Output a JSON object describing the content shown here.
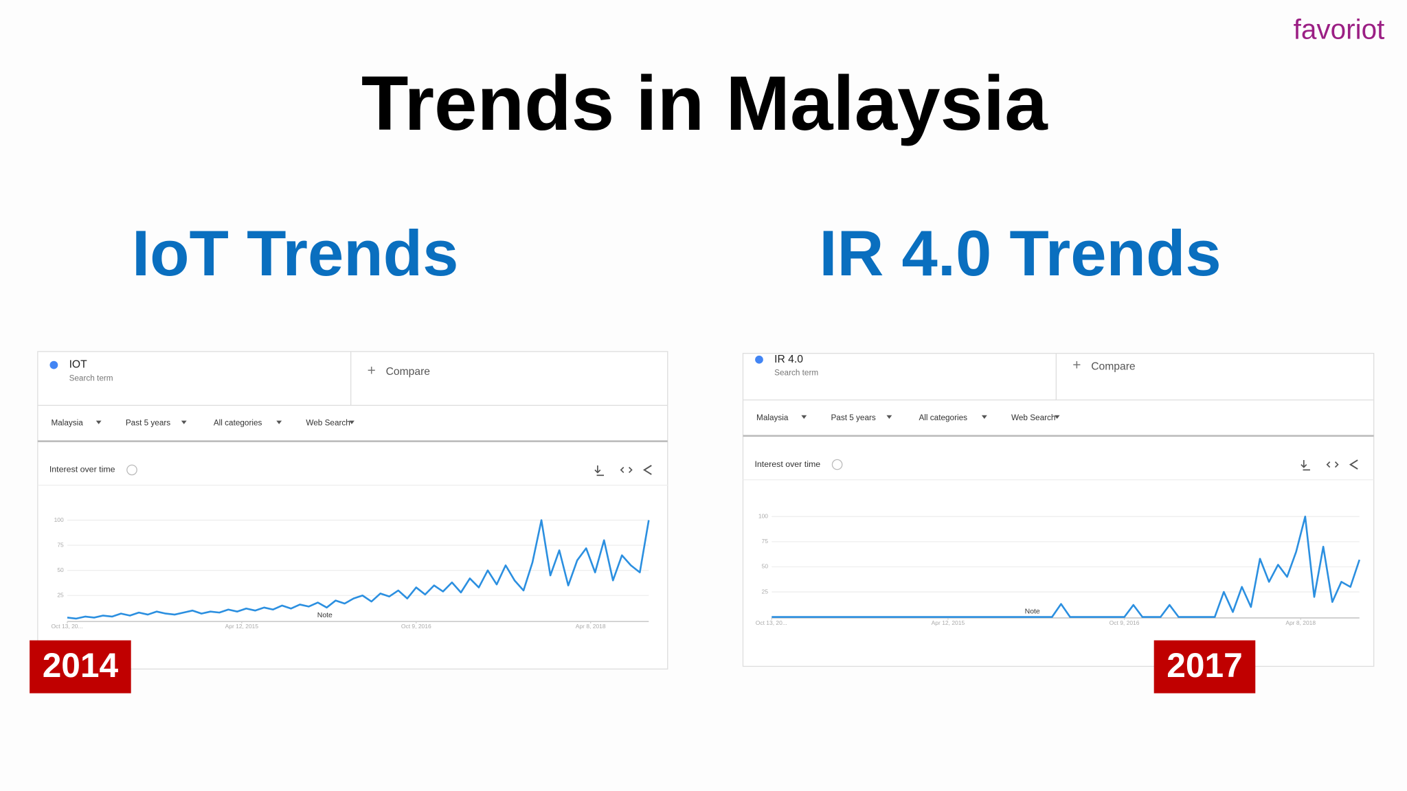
{
  "logo": "favoriot",
  "title": "Trends in Malaysia",
  "panels": [
    {
      "heading": "IoT Trends",
      "year": "2014",
      "search_term_label": "Search term",
      "compare": "Compare",
      "filters": [
        "Malaysia",
        "Past 5 years",
        "All categories",
        "Web Search"
      ],
      "section": "Interest over time"
    },
    {
      "heading": "IR 4.0 Trends",
      "year": "2017",
      "search_term_label": "Search term",
      "compare": "Compare",
      "filters": [
        "Malaysia",
        "Past 5 years",
        "All categories",
        "Web Search"
      ],
      "section": "Interest over time"
    }
  ],
  "chart_data": [
    {
      "type": "line",
      "x": [
        "2013-10-13",
        "2013-11-10",
        "2013-12-08",
        "2014-01-05",
        "2014-02-02",
        "2014-03-02",
        "2014-03-30",
        "2014-04-27",
        "2014-05-25",
        "2014-06-22",
        "2014-07-20",
        "2014-08-17",
        "2014-09-14",
        "2014-10-12",
        "2014-11-09",
        "2014-12-07",
        "2015-01-04",
        "2015-02-01",
        "2015-03-01",
        "2015-03-29",
        "2015-04-26",
        "2015-05-24",
        "2015-06-21",
        "2015-07-19",
        "2015-08-16",
        "2015-09-13",
        "2015-10-11",
        "2015-11-08",
        "2015-12-06",
        "2016-01-03",
        "2016-01-31",
        "2016-02-28",
        "2016-03-27",
        "2016-04-24",
        "2016-05-22",
        "2016-06-19",
        "2016-07-17",
        "2016-08-14",
        "2016-09-11",
        "2016-10-09",
        "2016-11-06",
        "2016-12-04",
        "2017-01-01",
        "2017-01-29",
        "2017-02-26",
        "2017-03-26",
        "2017-04-23",
        "2017-05-21",
        "2017-06-18",
        "2017-07-16",
        "2017-08-13",
        "2017-09-10",
        "2017-10-08",
        "2017-11-05",
        "2017-12-03",
        "2017-12-31",
        "2018-01-28",
        "2018-02-25",
        "2018-03-25",
        "2018-04-22",
        "2018-05-20",
        "2018-06-17",
        "2018-07-15",
        "2018-08-12",
        "2018-09-09",
        "2018-10-07"
      ],
      "series": [
        {
          "name": "IOT",
          "color": "#2b8fe0",
          "values": [
            3,
            2,
            4,
            3,
            5,
            4,
            7,
            5,
            8,
            6,
            9,
            7,
            6,
            8,
            10,
            7,
            9,
            8,
            11,
            9,
            12,
            10,
            13,
            11,
            15,
            12,
            16,
            14,
            18,
            13,
            20,
            17,
            22,
            25,
            19,
            27,
            24,
            30,
            22,
            33,
            26,
            35,
            29,
            38,
            28,
            42,
            33,
            50,
            36,
            55,
            40,
            30,
            58,
            100,
            45,
            70,
            35,
            60,
            72,
            48,
            80,
            40,
            65,
            55,
            48,
            100
          ]
        }
      ],
      "annotation": "Note",
      "xlim": [
        "2013-10-13",
        "2018-10-07"
      ],
      "xticks": [
        {
          "value": "2013-10-13",
          "label": "Oct 13, 20..."
        },
        {
          "value": "2015-04-12",
          "label": "Apr 12, 2015"
        },
        {
          "value": "2016-10-09",
          "label": "Oct 9, 2016"
        },
        {
          "value": "2018-04-08",
          "label": "Apr 8, 2018"
        }
      ],
      "ylim": [
        0,
        100
      ],
      "yticks": [
        25,
        50,
        75,
        100
      ],
      "grid": true
    },
    {
      "type": "line",
      "x": [
        "2013-10-13",
        "2013-11-10",
        "2013-12-08",
        "2014-01-05",
        "2014-02-02",
        "2014-03-02",
        "2014-03-30",
        "2014-04-27",
        "2014-05-25",
        "2014-06-22",
        "2014-07-20",
        "2014-08-17",
        "2014-09-14",
        "2014-10-12",
        "2014-11-09",
        "2014-12-07",
        "2015-01-04",
        "2015-02-01",
        "2015-03-01",
        "2015-03-29",
        "2015-04-26",
        "2015-05-24",
        "2015-06-21",
        "2015-07-19",
        "2015-08-16",
        "2015-09-13",
        "2015-10-11",
        "2015-11-08",
        "2015-12-06",
        "2016-01-03",
        "2016-01-31",
        "2016-02-28",
        "2016-03-27",
        "2016-04-24",
        "2016-05-22",
        "2016-06-19",
        "2016-07-17",
        "2016-08-14",
        "2016-09-11",
        "2016-10-09",
        "2016-11-06",
        "2016-12-04",
        "2017-01-01",
        "2017-01-29",
        "2017-02-26",
        "2017-03-26",
        "2017-04-23",
        "2017-05-21",
        "2017-06-18",
        "2017-07-16",
        "2017-08-13",
        "2017-09-10",
        "2017-10-08",
        "2017-11-05",
        "2017-12-03",
        "2017-12-31",
        "2018-01-28",
        "2018-02-25",
        "2018-03-25",
        "2018-04-22",
        "2018-05-20",
        "2018-06-17",
        "2018-07-15",
        "2018-08-12",
        "2018-09-09",
        "2018-10-07"
      ],
      "series": [
        {
          "name": "IR 4.0",
          "color": "#2b8fe0",
          "values": [
            0,
            0,
            0,
            0,
            0,
            0,
            0,
            0,
            0,
            0,
            0,
            0,
            0,
            0,
            0,
            0,
            0,
            0,
            0,
            0,
            0,
            0,
            0,
            0,
            0,
            0,
            0,
            0,
            0,
            0,
            0,
            0,
            13,
            0,
            0,
            0,
            0,
            0,
            0,
            0,
            12,
            0,
            0,
            0,
            12,
            0,
            0,
            0,
            0,
            0,
            25,
            5,
            30,
            10,
            58,
            35,
            52,
            40,
            65,
            100,
            20,
            70,
            15,
            35,
            30,
            57
          ]
        }
      ],
      "annotation": "Note",
      "xlim": [
        "2013-10-13",
        "2018-10-07"
      ],
      "xticks": [
        {
          "value": "2013-10-13",
          "label": "Oct 13, 20..."
        },
        {
          "value": "2015-04-12",
          "label": "Apr 12, 2015"
        },
        {
          "value": "2016-10-09",
          "label": "Oct 9, 2016"
        },
        {
          "value": "2018-04-08",
          "label": "Apr 8, 2018"
        }
      ],
      "ylim": [
        0,
        100
      ],
      "yticks": [
        25,
        50,
        75,
        100
      ],
      "grid": true
    }
  ]
}
